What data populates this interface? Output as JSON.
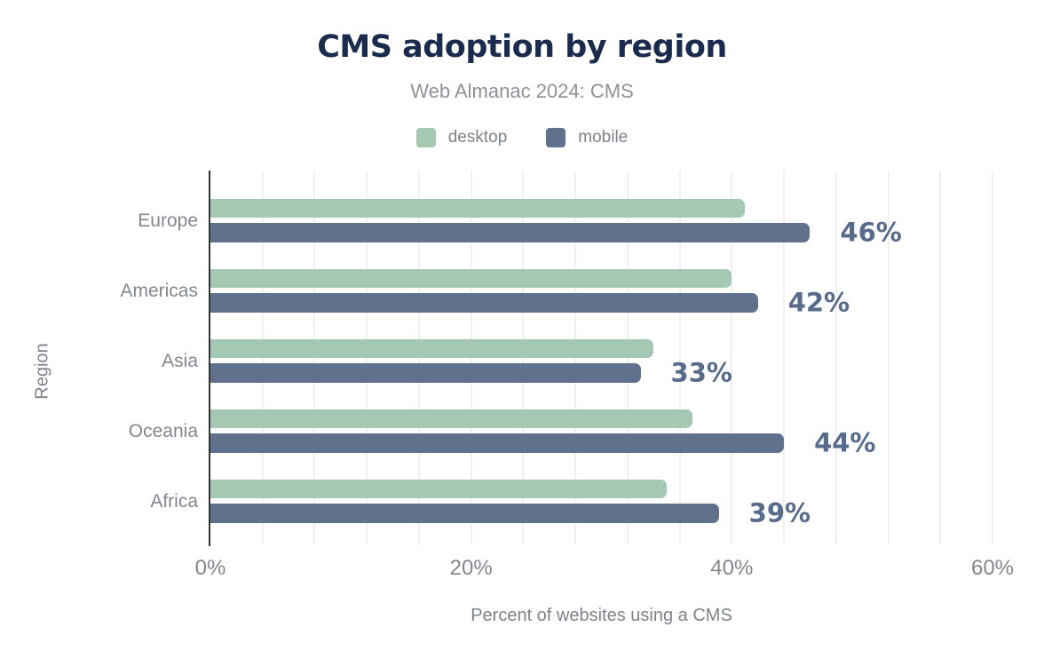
{
  "page": {
    "background_color": "#ffffff"
  },
  "header": {
    "title": "CMS adoption by region",
    "subtitle": "Web Almanac 2024: CMS",
    "title_color": "#1b2b4d",
    "subtitle_color": "#8d9298"
  },
  "legend": {
    "items": [
      {
        "label": "desktop",
        "color": "#a5c8b4"
      },
      {
        "label": "mobile",
        "color": "#5f718d"
      }
    ],
    "label_color": "#7d838b"
  },
  "chart_data": {
    "type": "bar",
    "orientation": "horizontal",
    "title": "CMS adoption by region",
    "subtitle": "Web Almanac 2024: CMS",
    "categories": [
      "Europe",
      "Americas",
      "Asia",
      "Oceania",
      "Africa"
    ],
    "series": [
      {
        "name": "desktop",
        "color": "#a5c8b4",
        "values": [
          41,
          40,
          34,
          37,
          35
        ]
      },
      {
        "name": "mobile",
        "color": "#5f718d",
        "values": [
          46,
          42,
          33,
          44,
          39
        ]
      }
    ],
    "bar_value_labels": {
      "on_series": "mobile",
      "texts": [
        "46%",
        "42%",
        "33%",
        "44%",
        "39%"
      ]
    },
    "xlabel": "Percent of websites using a CMS",
    "ylabel": "Region",
    "xlim": [
      0,
      60
    ],
    "x_ticks": [
      {
        "label": "0%",
        "value": 0
      },
      {
        "label": "20%",
        "value": 20
      },
      {
        "label": "40%",
        "value": 40
      },
      {
        "label": "60%",
        "value": 60
      }
    ],
    "grid": {
      "visible": true,
      "minor_step_pct": 4,
      "color": "#f0f0f0"
    },
    "legend_position": "top",
    "axis_line_color": "#333639",
    "axis_text_color": "#82878f",
    "axis_title_color": "#7d838b",
    "value_label_color": "#586b8b"
  }
}
